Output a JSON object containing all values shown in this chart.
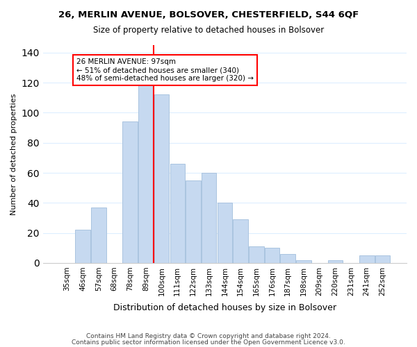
{
  "title1": "26, MERLIN AVENUE, BOLSOVER, CHESTERFIELD, S44 6QF",
  "title2": "Size of property relative to detached houses in Bolsover",
  "xlabel": "Distribution of detached houses by size in Bolsover",
  "ylabel": "Number of detached properties",
  "bar_labels": [
    "35sqm",
    "46sqm",
    "57sqm",
    "68sqm",
    "78sqm",
    "89sqm",
    "100sqm",
    "111sqm",
    "122sqm",
    "133sqm",
    "144sqm",
    "154sqm",
    "165sqm",
    "176sqm",
    "187sqm",
    "198sqm",
    "209sqm",
    "220sqm",
    "231sqm",
    "241sqm",
    "252sqm"
  ],
  "bar_values": [
    0,
    22,
    37,
    0,
    94,
    118,
    112,
    66,
    55,
    60,
    40,
    29,
    11,
    10,
    6,
    2,
    0,
    2,
    0,
    5,
    5
  ],
  "bar_color": "#c6d9f0",
  "bar_edge_color": "#aac4e0",
  "vline_x": 5.5,
  "vline_color": "red",
  "annotation_text": "26 MERLIN AVENUE: 97sqm\n← 51% of detached houses are smaller (340)\n48% of semi-detached houses are larger (320) →",
  "annotation_box_color": "white",
  "annotation_box_edgecolor": "red",
  "ylim": [
    0,
    145
  ],
  "yticks": [
    0,
    20,
    40,
    60,
    80,
    100,
    120,
    140
  ],
  "footer1": "Contains HM Land Registry data © Crown copyright and database right 2024.",
  "footer2": "Contains public sector information licensed under the Open Government Licence v3.0.",
  "bg_color": "white",
  "grid_color": "#ddeeff"
}
